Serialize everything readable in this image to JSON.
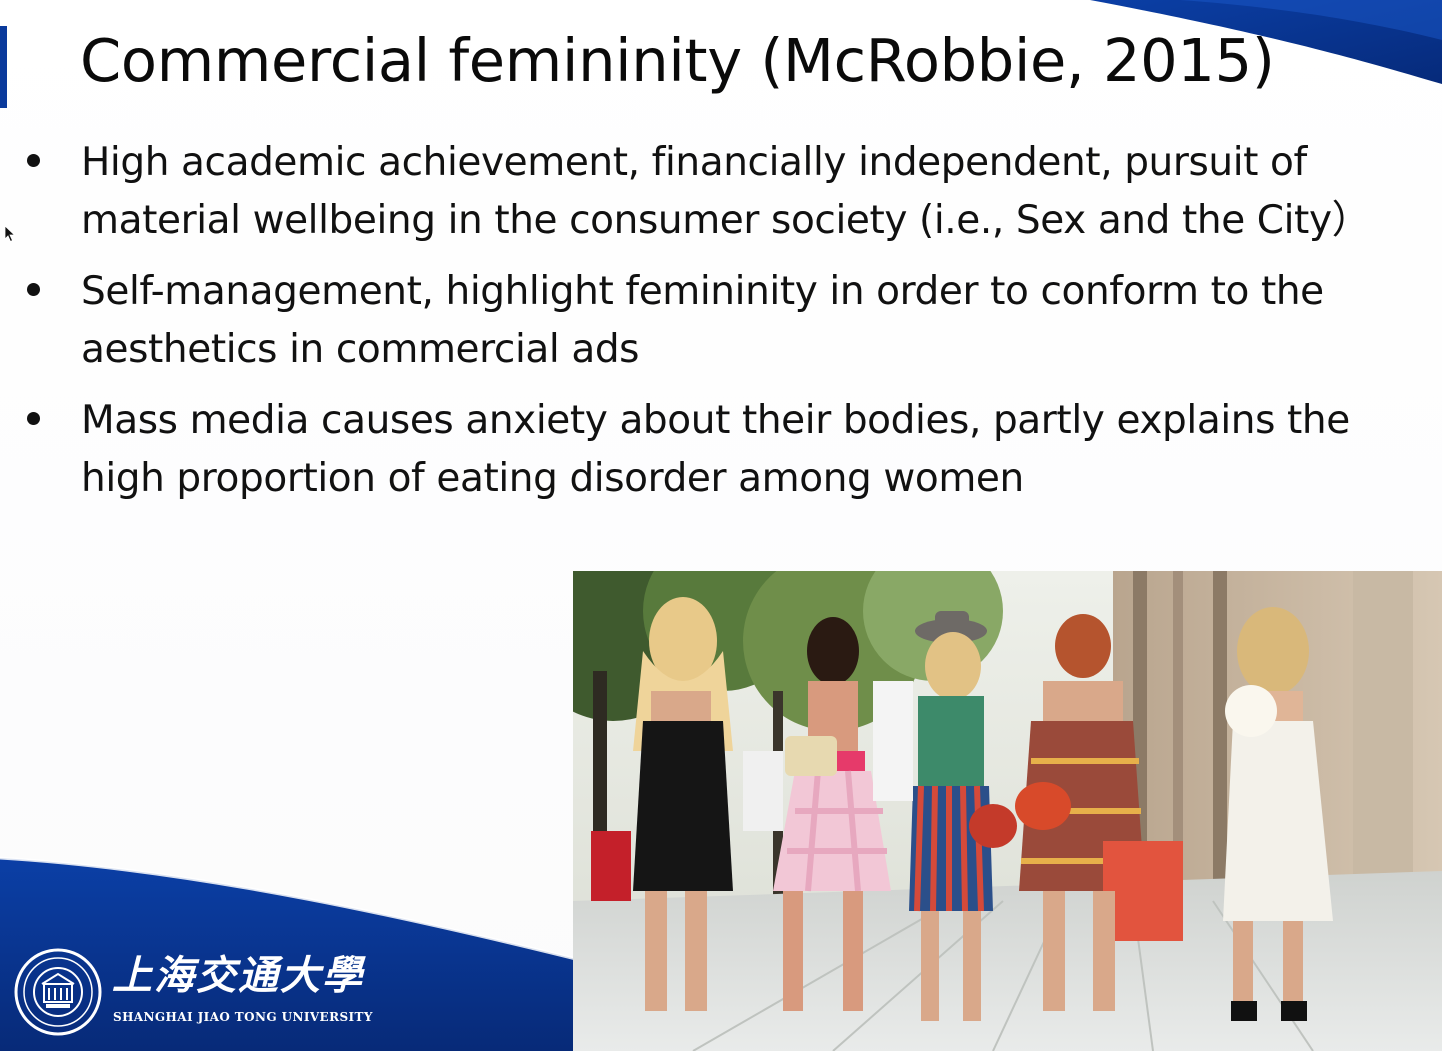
{
  "slide": {
    "title": "Commercial femininity (McRobbie, 2015)",
    "bullets": [
      {
        "lines": [
          "High academic achievement, financially independent, pursuit of",
          "material wellbeing in the consumer society (i.e., Sex and the City）"
        ]
      },
      {
        "lines": [
          "Self-management, highlight femininity in order to conform to the",
          "aesthetics in commercial ads"
        ]
      },
      {
        "lines": [
          "Mass media causes anxiety about their bodies, partly explains the",
          "high proportion of eating disorder among women"
        ]
      }
    ]
  },
  "logo": {
    "chinese_name": "上海交通大學",
    "english_name": "SHANGHAI JIAO TONG UNIVERSITY",
    "icon": "university-seal-icon"
  },
  "colors": {
    "brand_blue": "#0a3a9c",
    "dark_blue": "#072a78",
    "text": "#111111"
  }
}
